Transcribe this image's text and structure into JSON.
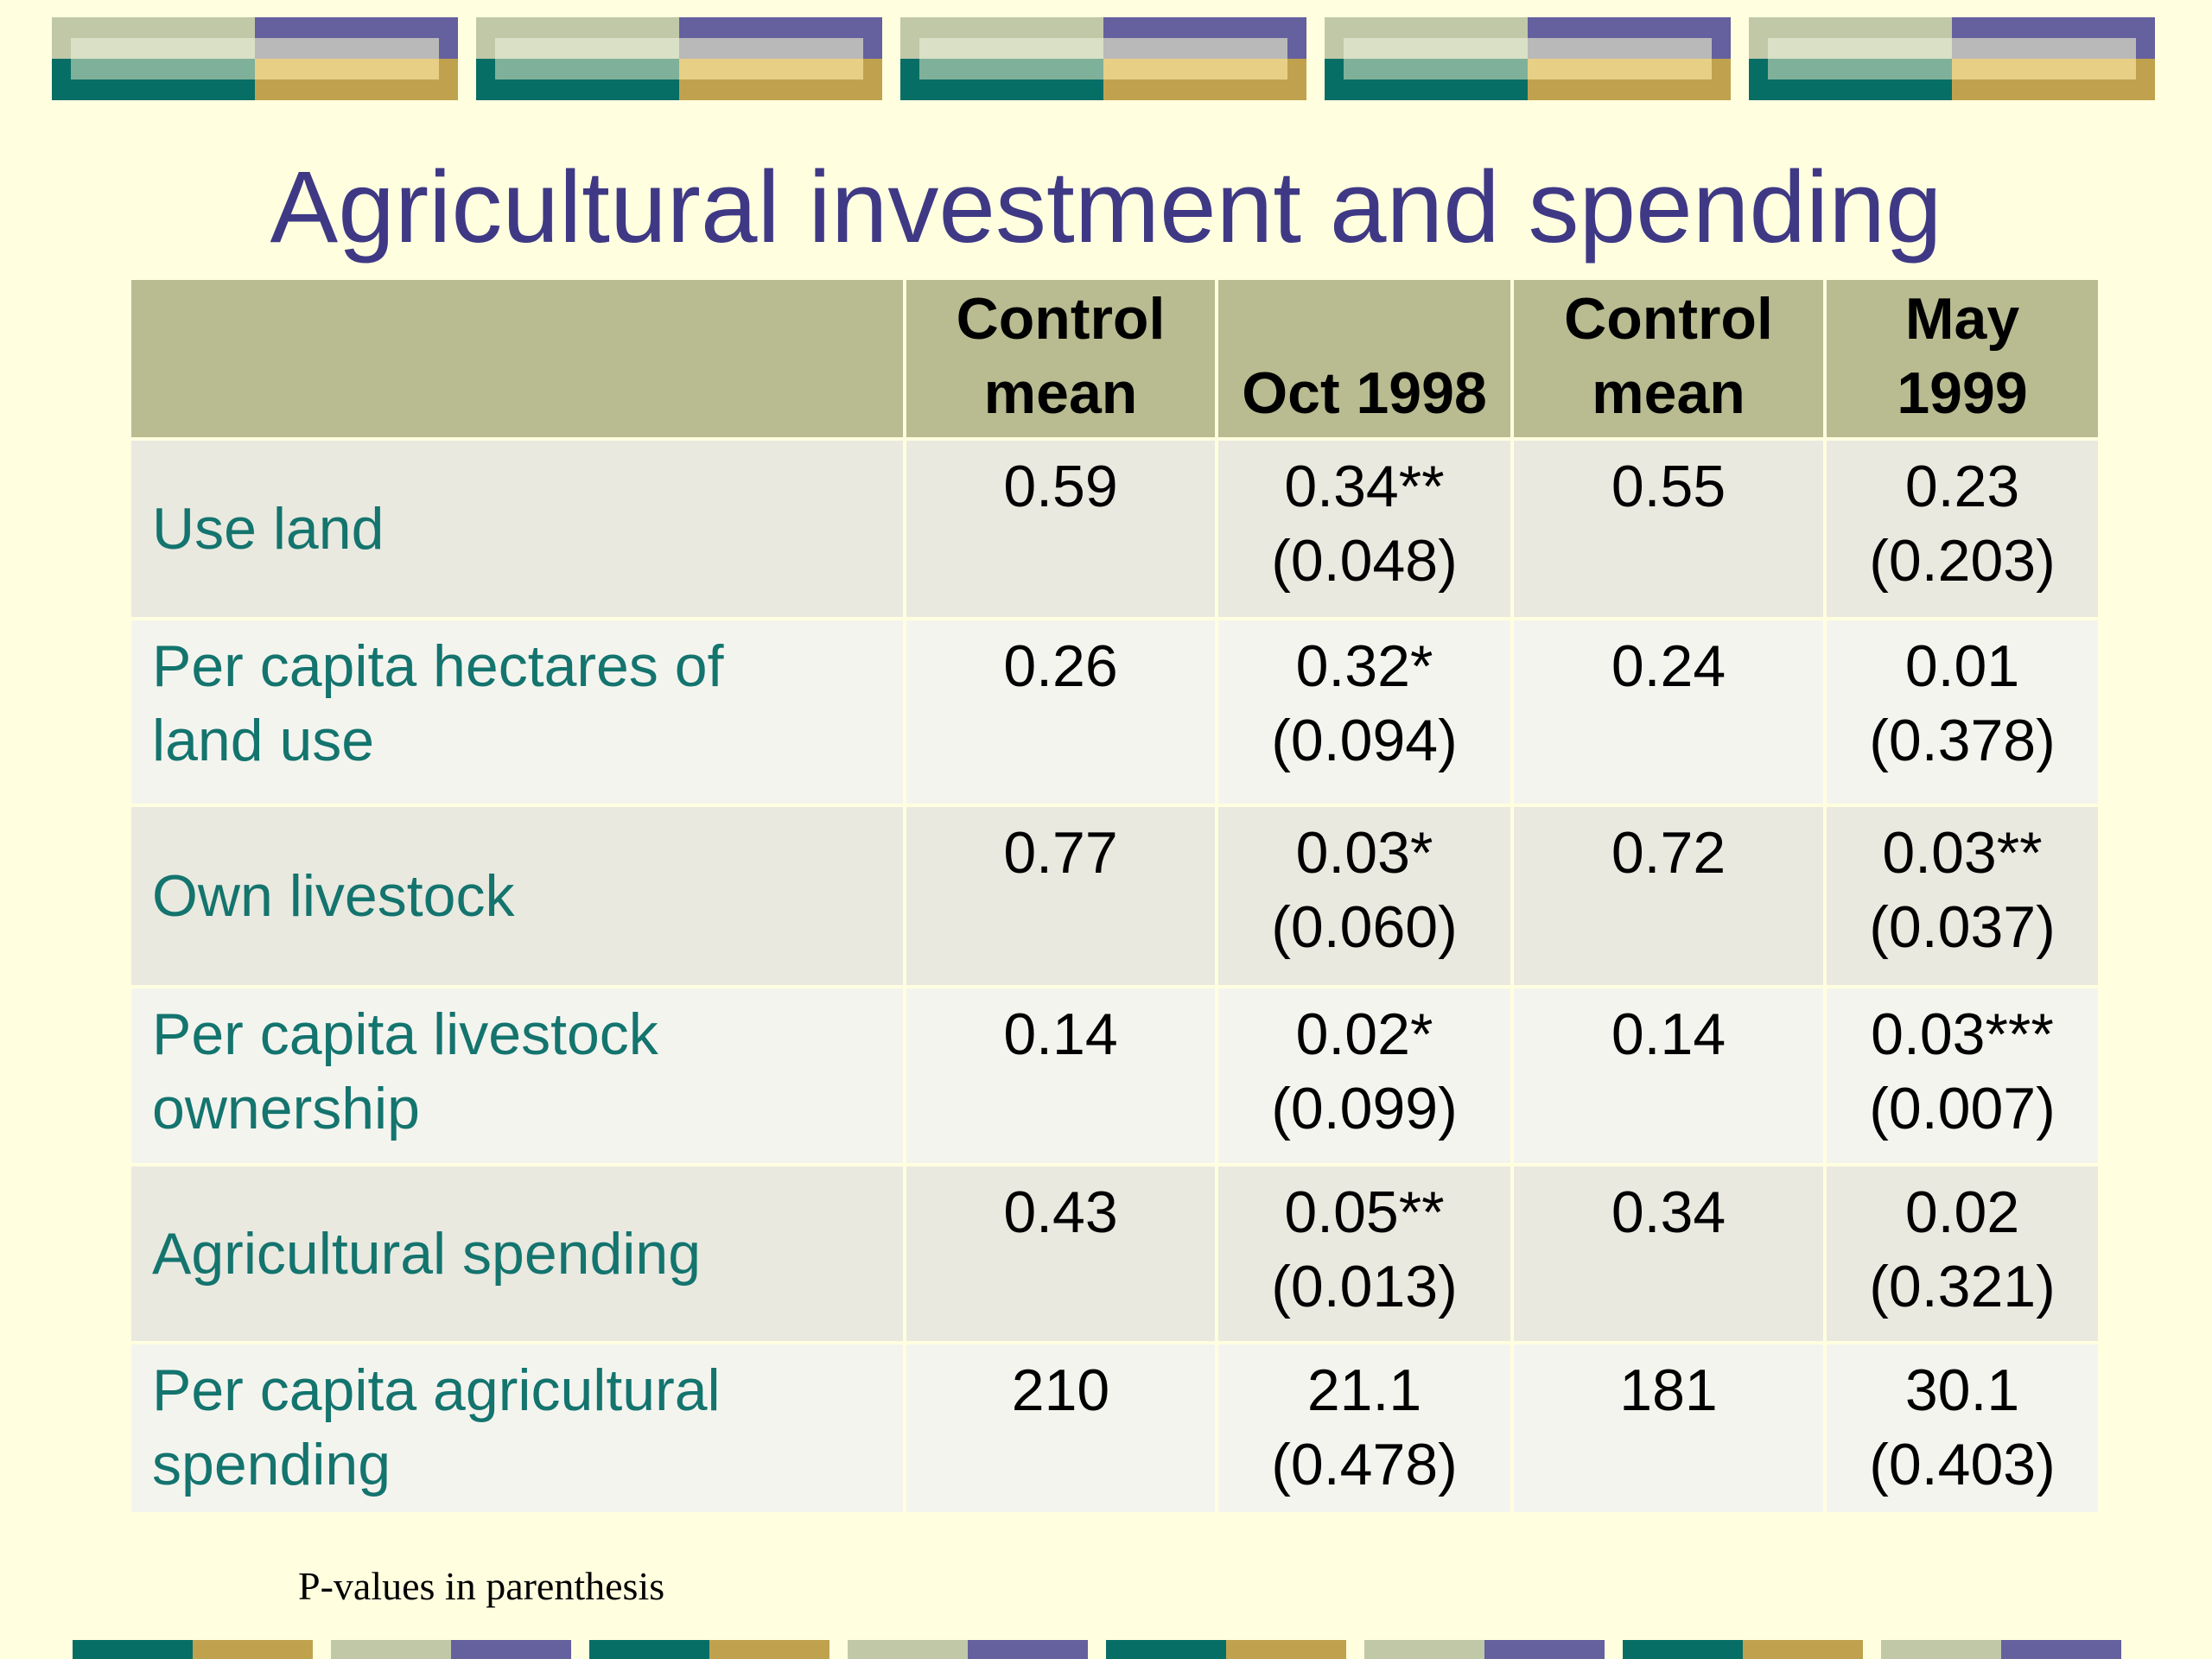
{
  "slide": {
    "title": "Agricultural investment and spending",
    "footnote": "P-values in parenthesis"
  },
  "table": {
    "headers": [
      {
        "line1": "",
        "line2": ""
      },
      {
        "line1": "Control",
        "line2": "mean"
      },
      {
        "line1": "",
        "line2": "Oct 1998"
      },
      {
        "line1": "Control",
        "line2": "mean"
      },
      {
        "line1": "May",
        "line2": "1999"
      }
    ],
    "rows": [
      {
        "label": "Use land",
        "control_1998": "0.59",
        "oct1998_effect": "0.34**",
        "oct1998_pvalue": "(0.048)",
        "control_1999": "0.55",
        "may1999_effect": "0.23",
        "may1999_pvalue": "(0.203)"
      },
      {
        "label": "Per capita hectares of land use",
        "control_1998": "0.26",
        "oct1998_effect": "0.32*",
        "oct1998_pvalue": "(0.094)",
        "control_1999": "0.24",
        "may1999_effect": "0.01",
        "may1999_pvalue": "(0.378)"
      },
      {
        "label": "Own livestock",
        "control_1998": "0.77",
        "oct1998_effect": "0.03*",
        "oct1998_pvalue": "(0.060)",
        "control_1999": "0.72",
        "may1999_effect": "0.03**",
        "may1999_pvalue": "(0.037)"
      },
      {
        "label": "Per capita livestock ownership",
        "control_1998": "0.14",
        "oct1998_effect": "0.02*",
        "oct1998_pvalue": "(0.099)",
        "control_1999": "0.14",
        "may1999_effect": "0.03***",
        "may1999_pvalue": "(0.007)"
      },
      {
        "label": "Agricultural spending",
        "control_1998": "0.43",
        "oct1998_effect": "0.05**",
        "oct1998_pvalue": "(0.013)",
        "control_1999": "0.34",
        "may1999_effect": "0.02",
        "may1999_pvalue": "(0.321)"
      },
      {
        "label": "Per capita agricultural spending",
        "control_1998": "210",
        "oct1998_effect": "21.1",
        "oct1998_pvalue": "(0.478)",
        "control_1999": "181",
        "may1999_effect": "30.1",
        "may1999_pvalue": "(0.403)"
      }
    ]
  },
  "colors": {
    "background": "#FFFFE0",
    "title": "#3F3985",
    "row_label": "#14746E",
    "header_fill": "#B8BC90",
    "banner_teal": "#076E66",
    "banner_purple": "#65609E",
    "banner_gold": "#C0A24E",
    "banner_sage": "#C0C8A8"
  }
}
